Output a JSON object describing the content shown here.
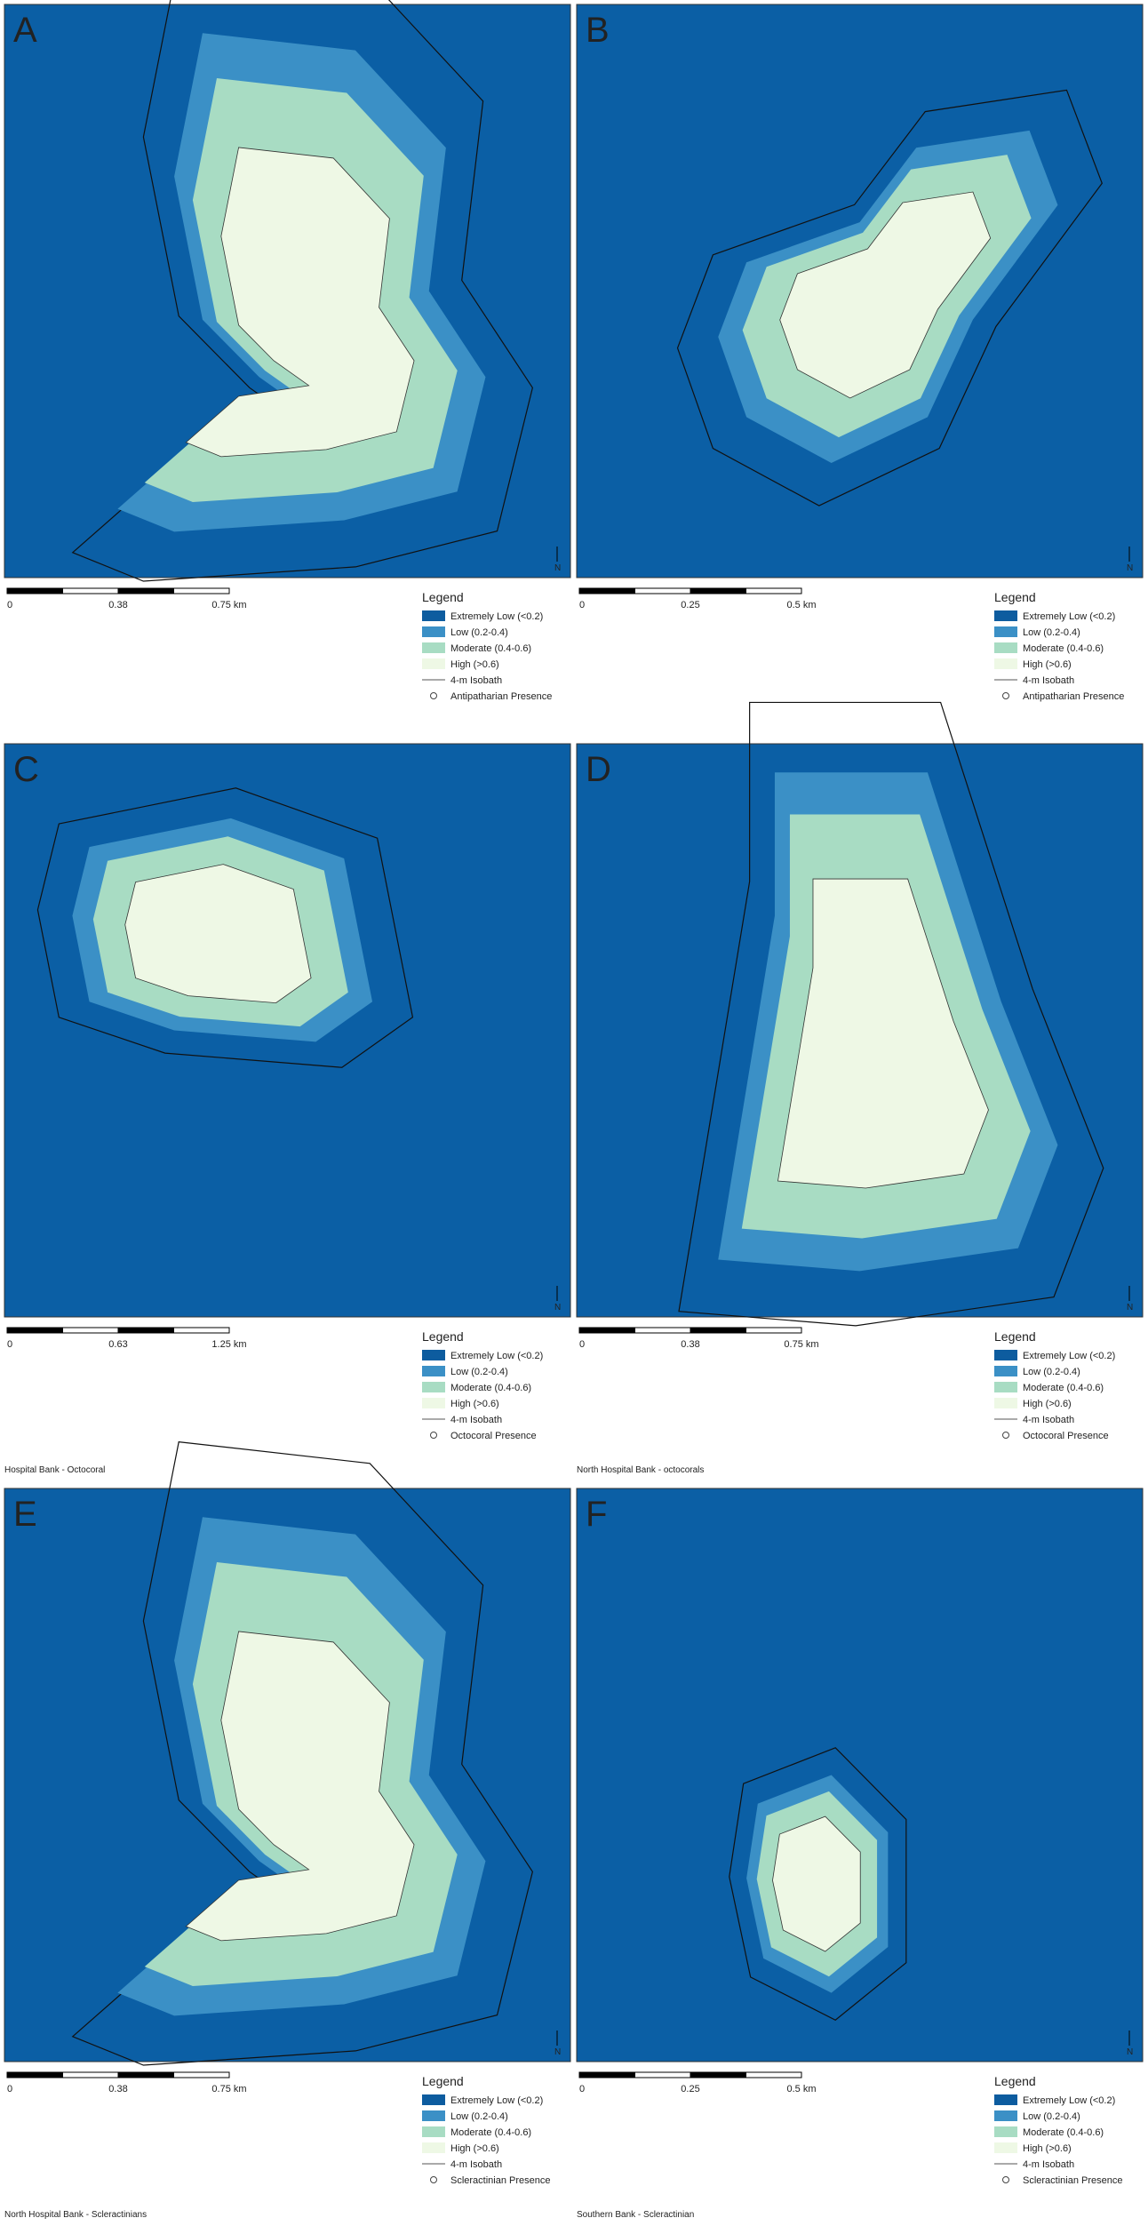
{
  "panels": [
    {
      "letter": "A",
      "scale_labels": [
        "0",
        "0.38",
        "0.75 km"
      ],
      "north": "N",
      "legend_title": "Legend",
      "legend": [
        "Extremely Low (<0.2)",
        "Low (0.2-0.4)",
        "Moderate (0.4-0.6)",
        "High (>0.6)",
        "4-m Isobath",
        "Antipatharian Presence"
      ]
    },
    {
      "letter": "B",
      "scale_labels": [
        "0",
        "0.25",
        "0.5 km"
      ],
      "north": "N",
      "legend_title": "Legend",
      "legend": [
        "Extremely Low (<0.2)",
        "Low (0.2-0.4)",
        "Moderate (0.4-0.6)",
        "High (>0.6)",
        "4-m Isobath",
        "Antipatharian Presence"
      ]
    },
    {
      "letter": "C",
      "scale_labels": [
        "0",
        "0.63",
        "1.25 km"
      ],
      "north": "N",
      "legend_title": "Legend",
      "legend": [
        "Extremely Low (<0.2)",
        "Low (0.2-0.4)",
        "Moderate (0.4-0.6)",
        "High (>0.6)",
        "4-m Isobath",
        "Octocoral Presence"
      ],
      "caption": "Hospital Bank - Octocoral"
    },
    {
      "letter": "D",
      "scale_labels": [
        "0",
        "0.38",
        "0.75 km"
      ],
      "north": "N",
      "legend_title": "Legend",
      "legend": [
        "Extremely Low (<0.2)",
        "Low (0.2-0.4)",
        "Moderate (0.4-0.6)",
        "High (>0.6)",
        "4-m Isobath",
        "Octocoral Presence"
      ],
      "caption": "North Hospital Bank - octocorals"
    },
    {
      "letter": "E",
      "scale_labels": [
        "0",
        "0.38",
        "0.75 km"
      ],
      "north": "N",
      "legend_title": "Legend",
      "legend": [
        "Extremely Low (<0.2)",
        "Low (0.2-0.4)",
        "Moderate (0.4-0.6)",
        "High (>0.6)",
        "4-m Isobath",
        "Scleractinian Presence"
      ],
      "caption": "North Hospital Bank - Scleractinians"
    },
    {
      "letter": "F",
      "scale_labels": [
        "0",
        "0.25",
        "0.5 km"
      ],
      "north": "N",
      "legend_title": "Legend",
      "legend": [
        "Extremely Low (<0.2)",
        "Low (0.2-0.4)",
        "Moderate (0.4-0.6)",
        "High (>0.6)",
        "4-m Isobath",
        "Scleractinian Presence"
      ],
      "caption": "Southern Bank - Scleractinian"
    }
  ]
}
